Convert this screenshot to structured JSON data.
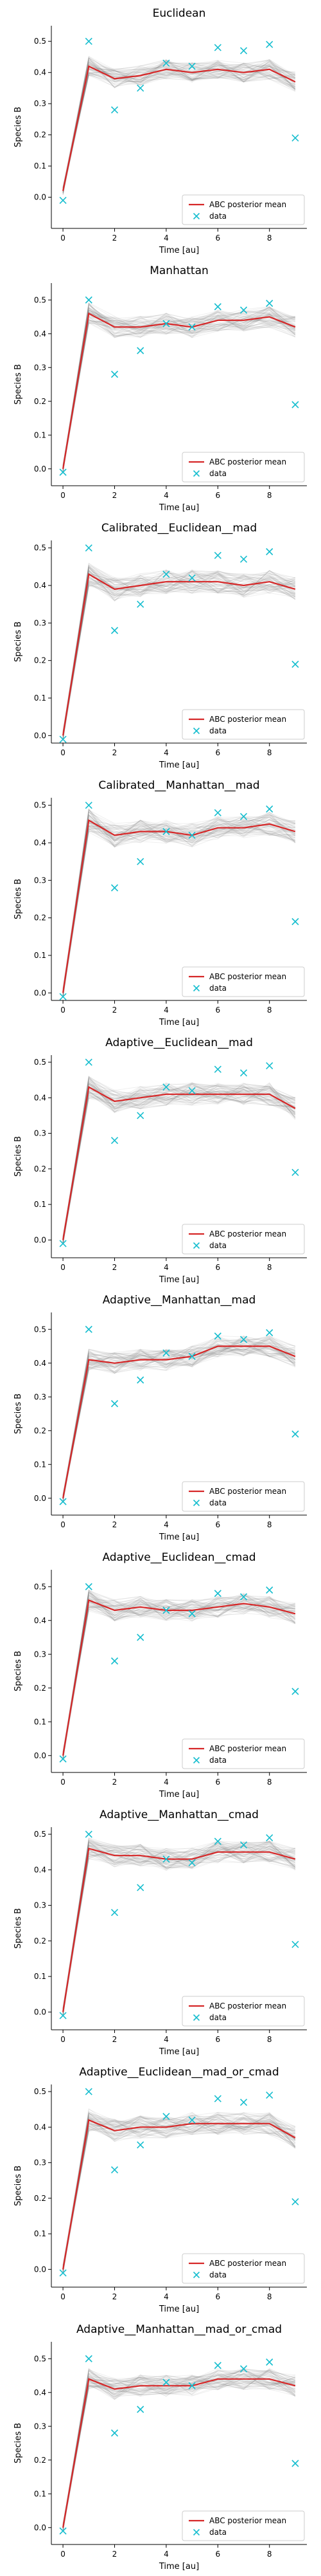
{
  "legend": {
    "mean_label": "ABC posterior mean",
    "data_label": "data"
  },
  "axes": {
    "xlabel": "Time [au]",
    "ylabel": "Species B"
  },
  "colors": {
    "mean": "#d62728",
    "data": "#17becf",
    "band": "#7f7f7f",
    "axis": "#000000"
  },
  "chart_data": [
    {
      "type": "line",
      "title": "Euclidean",
      "xlabel": "Time [au]",
      "ylabel": "Species B",
      "xlim": [
        -0.45,
        9.45
      ],
      "ylim": [
        -0.1,
        0.55
      ],
      "xticks": [
        0,
        2,
        4,
        6,
        8
      ],
      "yticks": [
        0.0,
        0.1,
        0.2,
        0.3,
        0.4,
        0.5
      ],
      "legend_position": "lower-right",
      "series": [
        {
          "name": "ABC posterior mean",
          "x": [
            0,
            1,
            2,
            3,
            4,
            5,
            6,
            7,
            8,
            9
          ],
          "y": [
            0.02,
            0.42,
            0.38,
            0.39,
            0.41,
            0.4,
            0.41,
            0.4,
            0.41,
            0.37
          ]
        },
        {
          "name": "data",
          "x": [
            0,
            1,
            2,
            3,
            4,
            5,
            6,
            7,
            8,
            9
          ],
          "y": [
            -0.01,
            0.5,
            0.28,
            0.35,
            0.43,
            0.42,
            0.48,
            0.47,
            0.49,
            0.19
          ]
        }
      ]
    },
    {
      "type": "line",
      "title": "Manhattan",
      "xlabel": "Time [au]",
      "ylabel": "Species B",
      "xlim": [
        -0.45,
        9.45
      ],
      "ylim": [
        -0.05,
        0.55
      ],
      "xticks": [
        0,
        2,
        4,
        6,
        8
      ],
      "yticks": [
        0.0,
        0.1,
        0.2,
        0.3,
        0.4,
        0.5
      ],
      "legend_position": "lower-right",
      "series": [
        {
          "name": "ABC posterior mean",
          "x": [
            0,
            1,
            2,
            3,
            4,
            5,
            6,
            7,
            8,
            9
          ],
          "y": [
            0.0,
            0.46,
            0.42,
            0.42,
            0.43,
            0.42,
            0.44,
            0.44,
            0.45,
            0.42
          ]
        },
        {
          "name": "data",
          "x": [
            0,
            1,
            2,
            3,
            4,
            5,
            6,
            7,
            8,
            9
          ],
          "y": [
            -0.01,
            0.5,
            0.28,
            0.35,
            0.43,
            0.42,
            0.48,
            0.47,
            0.49,
            0.19
          ]
        }
      ]
    },
    {
      "type": "line",
      "title": "Calibrated__Euclidean__mad",
      "xlabel": "Time [au]",
      "ylabel": "Species B",
      "xlim": [
        -0.45,
        9.45
      ],
      "ylim": [
        -0.02,
        0.52
      ],
      "xticks": [
        0,
        2,
        4,
        6,
        8
      ],
      "yticks": [
        0.0,
        0.1,
        0.2,
        0.3,
        0.4,
        0.5
      ],
      "legend_position": "lower-right",
      "series": [
        {
          "name": "ABC posterior mean",
          "x": [
            0,
            1,
            2,
            3,
            4,
            5,
            6,
            7,
            8,
            9
          ],
          "y": [
            0.0,
            0.43,
            0.39,
            0.4,
            0.41,
            0.41,
            0.41,
            0.4,
            0.41,
            0.39
          ]
        },
        {
          "name": "data",
          "x": [
            0,
            1,
            2,
            3,
            4,
            5,
            6,
            7,
            8,
            9
          ],
          "y": [
            -0.01,
            0.5,
            0.28,
            0.35,
            0.43,
            0.42,
            0.48,
            0.47,
            0.49,
            0.19
          ]
        }
      ]
    },
    {
      "type": "line",
      "title": "Calibrated__Manhattan__mad",
      "xlabel": "Time [au]",
      "ylabel": "Species B",
      "xlim": [
        -0.45,
        9.45
      ],
      "ylim": [
        -0.02,
        0.52
      ],
      "xticks": [
        0,
        2,
        4,
        6,
        8
      ],
      "yticks": [
        0.0,
        0.1,
        0.2,
        0.3,
        0.4,
        0.5
      ],
      "legend_position": "lower-right",
      "series": [
        {
          "name": "ABC posterior mean",
          "x": [
            0,
            1,
            2,
            3,
            4,
            5,
            6,
            7,
            8,
            9
          ],
          "y": [
            0.0,
            0.46,
            0.42,
            0.43,
            0.43,
            0.42,
            0.44,
            0.44,
            0.45,
            0.43
          ]
        },
        {
          "name": "data",
          "x": [
            0,
            1,
            2,
            3,
            4,
            5,
            6,
            7,
            8,
            9
          ],
          "y": [
            -0.01,
            0.5,
            0.28,
            0.35,
            0.43,
            0.42,
            0.48,
            0.47,
            0.49,
            0.19
          ]
        }
      ]
    },
    {
      "type": "line",
      "title": "Adaptive__Euclidean__mad",
      "xlabel": "Time [au]",
      "ylabel": "Species B",
      "xlim": [
        -0.45,
        9.45
      ],
      "ylim": [
        -0.05,
        0.52
      ],
      "xticks": [
        0,
        2,
        4,
        6,
        8
      ],
      "yticks": [
        0.0,
        0.1,
        0.2,
        0.3,
        0.4,
        0.5
      ],
      "legend_position": "lower-right",
      "series": [
        {
          "name": "ABC posterior mean",
          "x": [
            0,
            1,
            2,
            3,
            4,
            5,
            6,
            7,
            8,
            9
          ],
          "y": [
            0.0,
            0.43,
            0.39,
            0.4,
            0.41,
            0.41,
            0.41,
            0.41,
            0.41,
            0.37
          ]
        },
        {
          "name": "data",
          "x": [
            0,
            1,
            2,
            3,
            4,
            5,
            6,
            7,
            8,
            9
          ],
          "y": [
            -0.01,
            0.5,
            0.28,
            0.35,
            0.43,
            0.42,
            0.48,
            0.47,
            0.49,
            0.19
          ]
        }
      ]
    },
    {
      "type": "line",
      "title": "Adaptive__Manhattan__mad",
      "xlabel": "Time [au]",
      "ylabel": "Species B",
      "xlim": [
        -0.45,
        9.45
      ],
      "ylim": [
        -0.05,
        0.55
      ],
      "xticks": [
        0,
        2,
        4,
        6,
        8
      ],
      "yticks": [
        0.0,
        0.1,
        0.2,
        0.3,
        0.4,
        0.5
      ],
      "legend_position": "lower-right",
      "series": [
        {
          "name": "ABC posterior mean",
          "x": [
            0,
            1,
            2,
            3,
            4,
            5,
            6,
            7,
            8,
            9
          ],
          "y": [
            0.0,
            0.41,
            0.4,
            0.41,
            0.41,
            0.42,
            0.45,
            0.45,
            0.45,
            0.42
          ]
        },
        {
          "name": "data",
          "x": [
            0,
            1,
            2,
            3,
            4,
            5,
            6,
            7,
            8,
            9
          ],
          "y": [
            -0.01,
            0.5,
            0.28,
            0.35,
            0.43,
            0.42,
            0.48,
            0.47,
            0.49,
            0.19
          ]
        }
      ]
    },
    {
      "type": "line",
      "title": "Adaptive__Euclidean__cmad",
      "xlabel": "Time [au]",
      "ylabel": "Species B",
      "xlim": [
        -0.45,
        9.45
      ],
      "ylim": [
        -0.05,
        0.55
      ],
      "xticks": [
        0,
        2,
        4,
        6,
        8
      ],
      "yticks": [
        0.0,
        0.1,
        0.2,
        0.3,
        0.4,
        0.5
      ],
      "legend_position": "lower-right",
      "series": [
        {
          "name": "ABC posterior mean",
          "x": [
            0,
            1,
            2,
            3,
            4,
            5,
            6,
            7,
            8,
            9
          ],
          "y": [
            0.0,
            0.46,
            0.43,
            0.44,
            0.43,
            0.43,
            0.44,
            0.45,
            0.44,
            0.42
          ]
        },
        {
          "name": "data",
          "x": [
            0,
            1,
            2,
            3,
            4,
            5,
            6,
            7,
            8,
            9
          ],
          "y": [
            -0.01,
            0.5,
            0.28,
            0.35,
            0.43,
            0.42,
            0.48,
            0.47,
            0.49,
            0.19
          ]
        }
      ]
    },
    {
      "type": "line",
      "title": "Adaptive__Manhattan__cmad",
      "xlabel": "Time [au]",
      "ylabel": "Species B",
      "xlim": [
        -0.45,
        9.45
      ],
      "ylim": [
        -0.05,
        0.52
      ],
      "xticks": [
        0,
        2,
        4,
        6,
        8
      ],
      "yticks": [
        0.0,
        0.1,
        0.2,
        0.3,
        0.4,
        0.5
      ],
      "legend_position": "lower-right",
      "series": [
        {
          "name": "ABC posterior mean",
          "x": [
            0,
            1,
            2,
            3,
            4,
            5,
            6,
            7,
            8,
            9
          ],
          "y": [
            0.0,
            0.46,
            0.44,
            0.44,
            0.43,
            0.43,
            0.45,
            0.45,
            0.45,
            0.43
          ]
        },
        {
          "name": "data",
          "x": [
            0,
            1,
            2,
            3,
            4,
            5,
            6,
            7,
            8,
            9
          ],
          "y": [
            -0.01,
            0.5,
            0.28,
            0.35,
            0.43,
            0.42,
            0.48,
            0.47,
            0.49,
            0.19
          ]
        }
      ]
    },
    {
      "type": "line",
      "title": "Adaptive__Euclidean__mad_or_cmad",
      "xlabel": "Time [au]",
      "ylabel": "Species B",
      "xlim": [
        -0.45,
        9.45
      ],
      "ylim": [
        -0.05,
        0.52
      ],
      "xticks": [
        0,
        2,
        4,
        6,
        8
      ],
      "yticks": [
        0.0,
        0.1,
        0.2,
        0.3,
        0.4,
        0.5
      ],
      "legend_position": "lower-right",
      "series": [
        {
          "name": "ABC posterior mean",
          "x": [
            0,
            1,
            2,
            3,
            4,
            5,
            6,
            7,
            8,
            9
          ],
          "y": [
            0.0,
            0.42,
            0.39,
            0.4,
            0.4,
            0.41,
            0.41,
            0.41,
            0.41,
            0.37
          ]
        },
        {
          "name": "data",
          "x": [
            0,
            1,
            2,
            3,
            4,
            5,
            6,
            7,
            8,
            9
          ],
          "y": [
            -0.01,
            0.5,
            0.28,
            0.35,
            0.43,
            0.42,
            0.48,
            0.47,
            0.49,
            0.19
          ]
        }
      ]
    },
    {
      "type": "line",
      "title": "Adaptive__Manhattan__mad_or_cmad",
      "xlabel": "Time [au]",
      "ylabel": "Species B",
      "xlim": [
        -0.45,
        9.45
      ],
      "ylim": [
        -0.05,
        0.55
      ],
      "xticks": [
        0,
        2,
        4,
        6,
        8
      ],
      "yticks": [
        0.0,
        0.1,
        0.2,
        0.3,
        0.4,
        0.5
      ],
      "legend_position": "lower-right",
      "series": [
        {
          "name": "ABC posterior mean",
          "x": [
            0,
            1,
            2,
            3,
            4,
            5,
            6,
            7,
            8,
            9
          ],
          "y": [
            0.0,
            0.44,
            0.41,
            0.42,
            0.42,
            0.42,
            0.44,
            0.44,
            0.44,
            0.42
          ]
        },
        {
          "name": "data",
          "x": [
            0,
            1,
            2,
            3,
            4,
            5,
            6,
            7,
            8,
            9
          ],
          "y": [
            -0.01,
            0.5,
            0.28,
            0.35,
            0.43,
            0.42,
            0.48,
            0.47,
            0.49,
            0.19
          ]
        }
      ]
    }
  ]
}
